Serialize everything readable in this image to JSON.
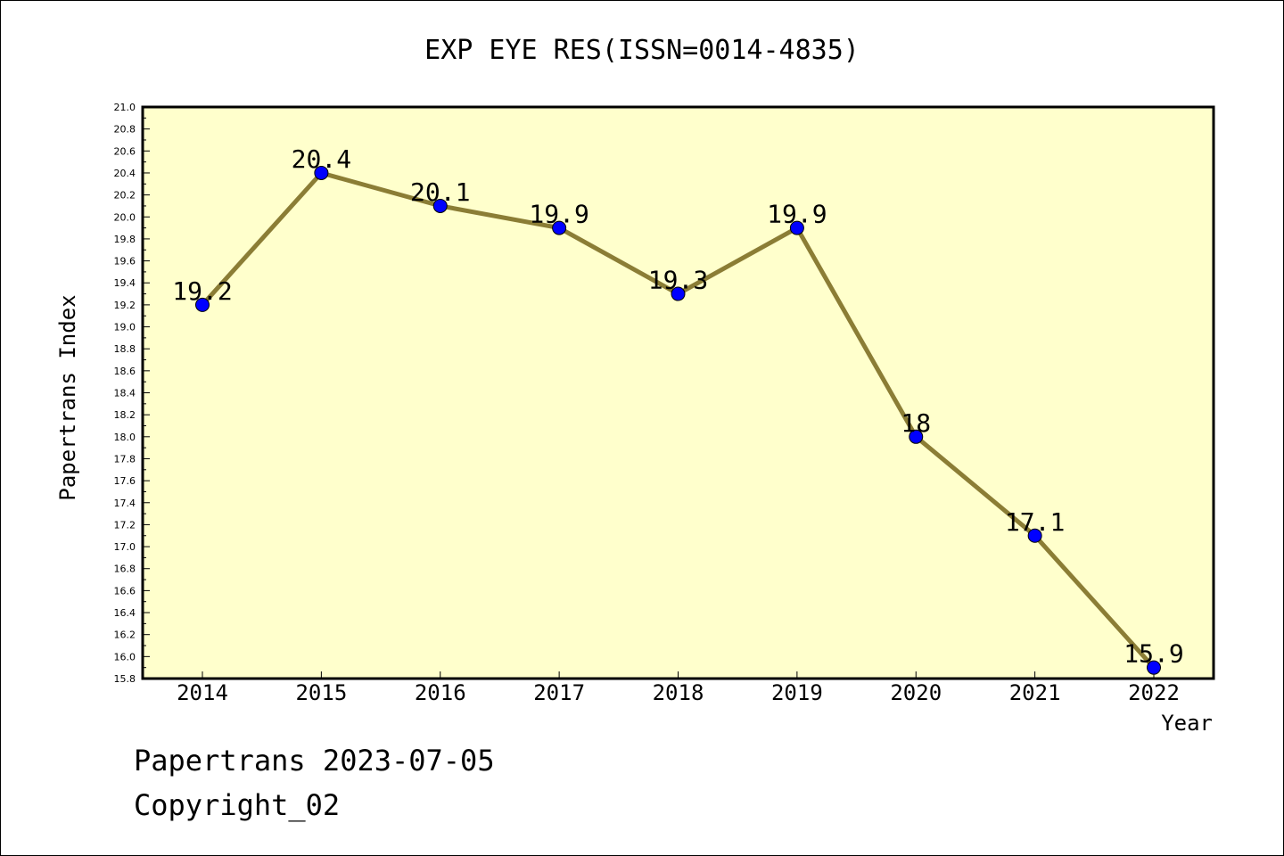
{
  "chart_data": {
    "type": "line",
    "title": "EXP EYE RES(ISSN=0014-4835)",
    "xlabel": "Year",
    "ylabel": "Papertrans Index",
    "categories": [
      "2014",
      "2015",
      "2016",
      "2017",
      "2018",
      "2019",
      "2020",
      "2021",
      "2022"
    ],
    "values": [
      19.2,
      20.4,
      20.1,
      19.9,
      19.3,
      19.9,
      18,
      17.1,
      15.9
    ],
    "data_labels": [
      "19.2",
      "20.4",
      "20.1",
      "19.9",
      "19.3",
      "19.9",
      "18",
      "17.1",
      "15.9"
    ],
    "ylim": [
      15.8,
      21.0
    ],
    "yticks": [
      "15.8",
      "16.0",
      "16.2",
      "16.4",
      "16.6",
      "16.8",
      "17.0",
      "17.2",
      "17.4",
      "17.6",
      "17.8",
      "18.0",
      "18.2",
      "18.4",
      "18.6",
      "18.8",
      "19.0",
      "19.2",
      "19.4",
      "19.6",
      "19.8",
      "20.0",
      "20.2",
      "20.4",
      "20.6",
      "20.8",
      "21.0"
    ],
    "grid": false,
    "legend": "none",
    "colors": {
      "plot_background": "#ffffcc",
      "line": "#8b7d35",
      "marker": "#0000ff"
    }
  },
  "footer": {
    "line1": "Papertrans 2023-07-05",
    "line2": "Copyright_02"
  }
}
